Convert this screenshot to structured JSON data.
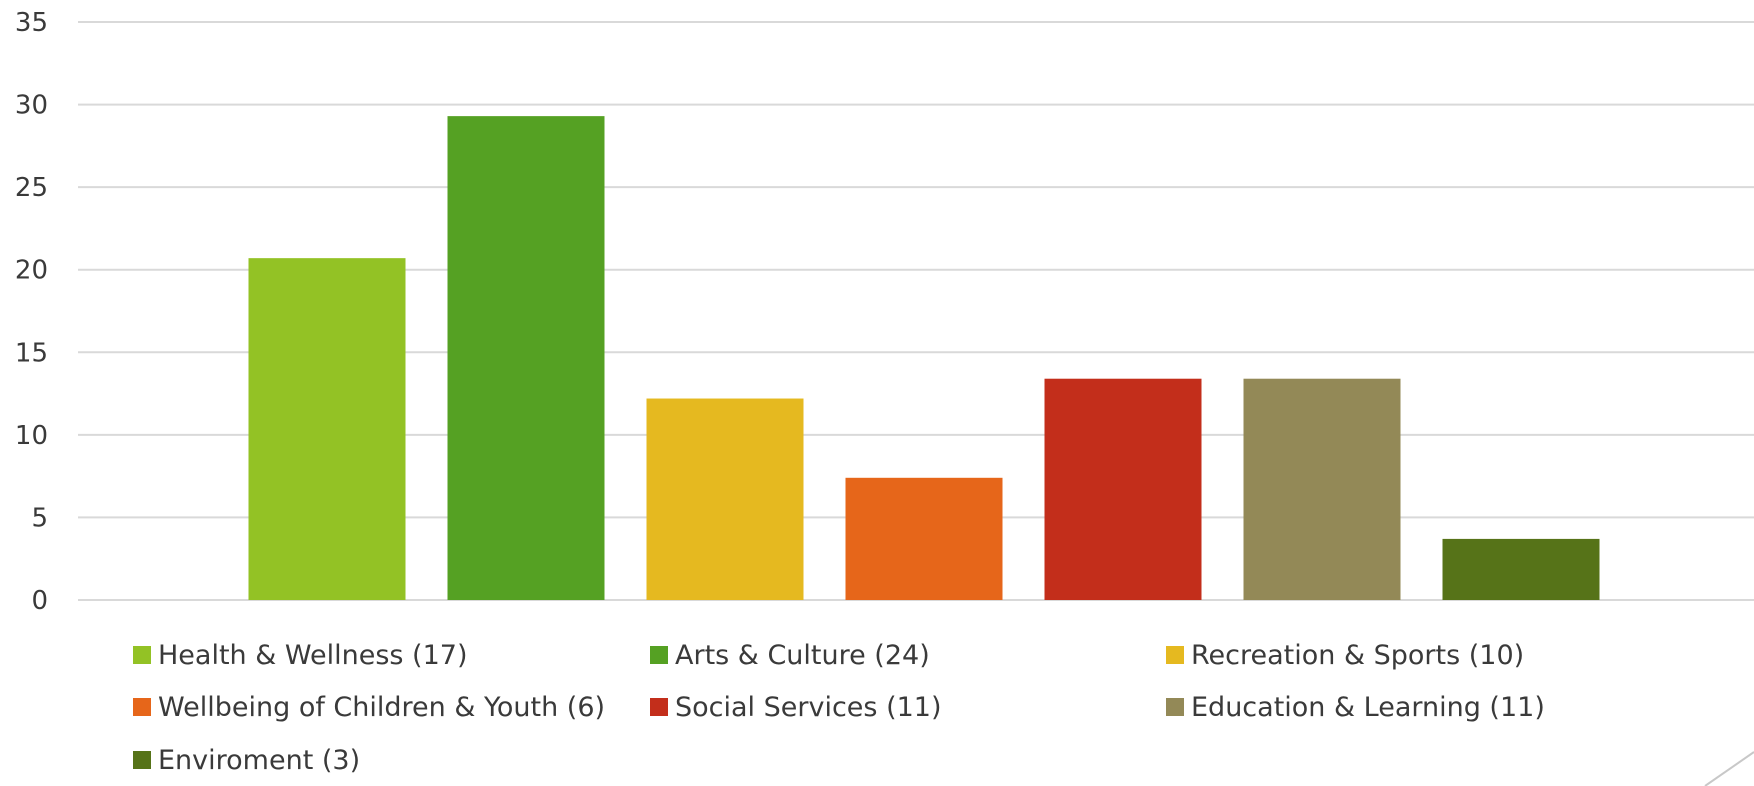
{
  "chart_data": {
    "type": "bar",
    "categories": [
      "Health & Wellness (17)",
      "Arts & Culture (24)",
      "Recreation & Sports (10)",
      "Wellbeing of Children & Youth (6)",
      "Social Services (11)",
      "Education & Learning (11)",
      "Enviroment (3)"
    ],
    "values": [
      20.7,
      29.3,
      12.2,
      7.4,
      13.4,
      13.4,
      3.7
    ],
    "colors": [
      "#93c225",
      "#55a123",
      "#e5b920",
      "#e6661a",
      "#c32e1b",
      "#938957",
      "#567318"
    ],
    "title": "",
    "xlabel": "",
    "ylabel": "",
    "ylim": [
      0,
      35
    ],
    "yticks": [
      "0",
      "5",
      "10",
      "15",
      "20",
      "25",
      "30",
      "35"
    ],
    "grid": true,
    "legend_position": "bottom"
  }
}
